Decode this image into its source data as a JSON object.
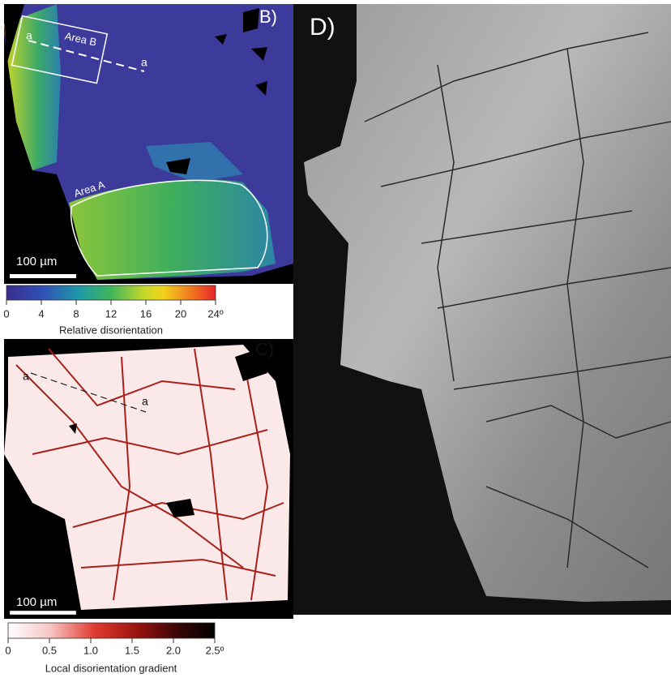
{
  "panel_b": {
    "label": "B)",
    "area_b": "Area B",
    "area_a": "Area A",
    "line_start": "a",
    "line_end": "a",
    "scale_bar": "100 µm"
  },
  "colorbar_b": {
    "title": "Relative disorientation",
    "range": [
      0,
      24
    ],
    "ticks": [
      0,
      4,
      8,
      12,
      16,
      20,
      {
        "value": 24,
        "label": "24º"
      }
    ]
  },
  "panel_c": {
    "label": "C)",
    "line_start": "a",
    "line_end": "a",
    "scale_bar": "100 µm"
  },
  "colorbar_c": {
    "title": "Local disorientation gradient",
    "range": [
      0,
      2.5
    ],
    "ticks": [
      0,
      0.5,
      {
        "value": 1,
        "label": "1.0"
      },
      1.5,
      {
        "value": 2,
        "label": "2.0"
      },
      {
        "value": 2.5,
        "label": "2.5º"
      }
    ]
  },
  "panel_d": {
    "label": "D)"
  }
}
